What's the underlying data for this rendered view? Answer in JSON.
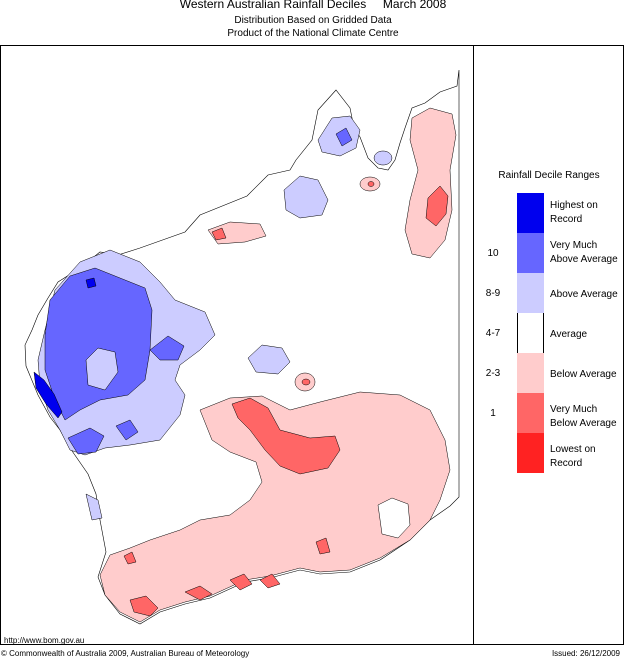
{
  "title": "Western Australian Rainfall Deciles     March 2008",
  "subtitle1": "Distribution Based on Gridded Data",
  "subtitle2": "Product of the National Climate Centre",
  "legend": {
    "title": "Rainfall Decile Ranges",
    "items": [
      {
        "label": "Highest on Record",
        "range": "",
        "color": "#0000ee"
      },
      {
        "label": "Very Much Above Average",
        "range": "10",
        "color": "#6666ff"
      },
      {
        "label": "Above Average",
        "range": "8-9",
        "color": "#ccccff"
      },
      {
        "label": "Average",
        "range": "4-7",
        "color": "#ffffff"
      },
      {
        "label": "Below Average",
        "range": "2-3",
        "color": "#ffcccc"
      },
      {
        "label": "Very Much Below Average",
        "range": "1",
        "color": "#ff6666"
      },
      {
        "label": "Lowest on Record",
        "range": "",
        "color": "#ff2222"
      }
    ]
  },
  "footer": {
    "url": "http://www.bom.gov.au",
    "copyright": "© Commonwealth of Australia 2009, Australian Bureau of Meteorology",
    "issued": "Issued: 26/12/2009"
  },
  "colors": {
    "outline": "#000000",
    "highest": "#0000ee",
    "very_much_above": "#6666ff",
    "above": "#ccccff",
    "average": "#ffffff",
    "below": "#ffcccc",
    "very_much_below": "#ff6666",
    "lowest": "#ff2222"
  }
}
